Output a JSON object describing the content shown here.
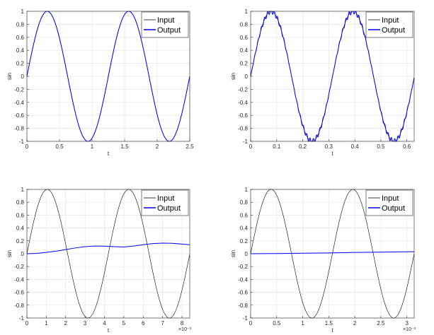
{
  "chart_data": [
    {
      "type": "line",
      "xlabel": "t",
      "ylabel": "sin",
      "xlim": [
        0,
        2.5
      ],
      "ylim": [
        -1,
        1
      ],
      "xticks": [
        "0",
        "0.5",
        "1",
        "1.5",
        "2",
        "2.5"
      ],
      "yticks": [
        "-1",
        "-0.8",
        "-0.6",
        "-0.4",
        "-0.2",
        "0",
        "0.2",
        "0.4",
        "0.6",
        "0.8",
        "1"
      ],
      "x_exponent": "",
      "grid": true,
      "legend": "top-right",
      "series": [
        {
          "name": "Input",
          "color": "#000000",
          "function": "sin",
          "frequency_hz": 0.8,
          "amplitude": 1.0,
          "phase_lag_rad": 0.0
        },
        {
          "name": "Output",
          "color": "#0000ff",
          "function": "sin",
          "frequency_hz": 0.8,
          "amplitude": 1.0,
          "phase_lag_rad": 0.0
        }
      ]
    },
    {
      "type": "line",
      "xlabel": "t",
      "ylabel": "sin",
      "xlim": [
        0,
        0.628
      ],
      "ylim": [
        -1,
        1
      ],
      "xticks": [
        "0",
        "0.1",
        "0.2",
        "0.3",
        "0.4",
        "0.5",
        "0.6"
      ],
      "yticks": [
        "-1",
        "-0.8",
        "-0.6",
        "-0.4",
        "-0.2",
        "0",
        "0.2",
        "0.4",
        "0.6",
        "0.8",
        "1"
      ],
      "x_exponent": "",
      "grid": true,
      "legend": "top-right",
      "series": [
        {
          "name": "Input",
          "color": "#000000",
          "function": "sin",
          "frequency_hz": 3.18,
          "amplitude": 1.0,
          "phase_lag_rad": 0.0
        },
        {
          "name": "Output",
          "color": "#0000ff",
          "function": "sin",
          "frequency_hz": 3.18,
          "amplitude": 1.0,
          "phase_lag_rad": 0.0,
          "ripple_amplitude": 0.04,
          "ripple_frequency_hz": 80
        }
      ]
    },
    {
      "type": "line",
      "xlabel": "t",
      "ylabel": "sin",
      "xlim": [
        0,
        8.4
      ],
      "ylim": [
        -1,
        1
      ],
      "xticks": [
        "0",
        "1",
        "2",
        "3",
        "4",
        "5",
        "6",
        "7",
        "8"
      ],
      "yticks": [
        "-1",
        "-0.8",
        "-0.6",
        "-0.4",
        "-0.2",
        "0",
        "0.2",
        "0.4",
        "0.6",
        "0.8",
        "1"
      ],
      "x_exponent": "×10⁻³",
      "grid": true,
      "legend": "top-right",
      "series": [
        {
          "name": "Input",
          "color": "#000000",
          "function": "sin",
          "frequency_hz": 0.238,
          "amplitude": 1.0,
          "phase_lag_rad": 0.0
        },
        {
          "name": "Output",
          "color": "#0000ff",
          "points": [
            [
              0,
              0
            ],
            [
              0.5,
              0.005
            ],
            [
              1,
              0.02
            ],
            [
              1.5,
              0.04
            ],
            [
              2,
              0.065
            ],
            [
              2.5,
              0.09
            ],
            [
              3,
              0.11
            ],
            [
              3.5,
              0.12
            ],
            [
              4,
              0.118
            ],
            [
              4.5,
              0.11
            ],
            [
              5,
              0.105
            ],
            [
              5.5,
              0.12
            ],
            [
              6,
              0.14
            ],
            [
              6.5,
              0.158
            ],
            [
              7,
              0.165
            ],
            [
              7.5,
              0.162
            ],
            [
              8,
              0.15
            ],
            [
              8.4,
              0.14
            ]
          ]
        }
      ]
    },
    {
      "type": "line",
      "xlabel": "t",
      "ylabel": "sin",
      "xlim": [
        0,
        3.14
      ],
      "ylim": [
        -1,
        1
      ],
      "xticks": [
        "0",
        "0.5",
        "1",
        "1.5",
        "2",
        "2.5",
        "3"
      ],
      "yticks": [
        "-1",
        "-0.8",
        "-0.6",
        "-0.4",
        "-0.2",
        "0",
        "0.2",
        "0.4",
        "0.6",
        "0.8",
        "1"
      ],
      "x_exponent": "×10⁻³",
      "grid": true,
      "legend": "top-right",
      "series": [
        {
          "name": "Input",
          "color": "#000000",
          "function": "sin",
          "frequency_hz": 0.637,
          "amplitude": 1.0,
          "phase_lag_rad": 0.0
        },
        {
          "name": "Output",
          "color": "#0000ff",
          "points": [
            [
              0,
              0
            ],
            [
              0.5,
              0.003
            ],
            [
              1,
              0.008
            ],
            [
              1.5,
              0.013
            ],
            [
              2,
              0.02
            ],
            [
              2.5,
              0.025
            ],
            [
              3,
              0.03
            ],
            [
              3.14,
              0.031
            ]
          ]
        }
      ]
    }
  ]
}
